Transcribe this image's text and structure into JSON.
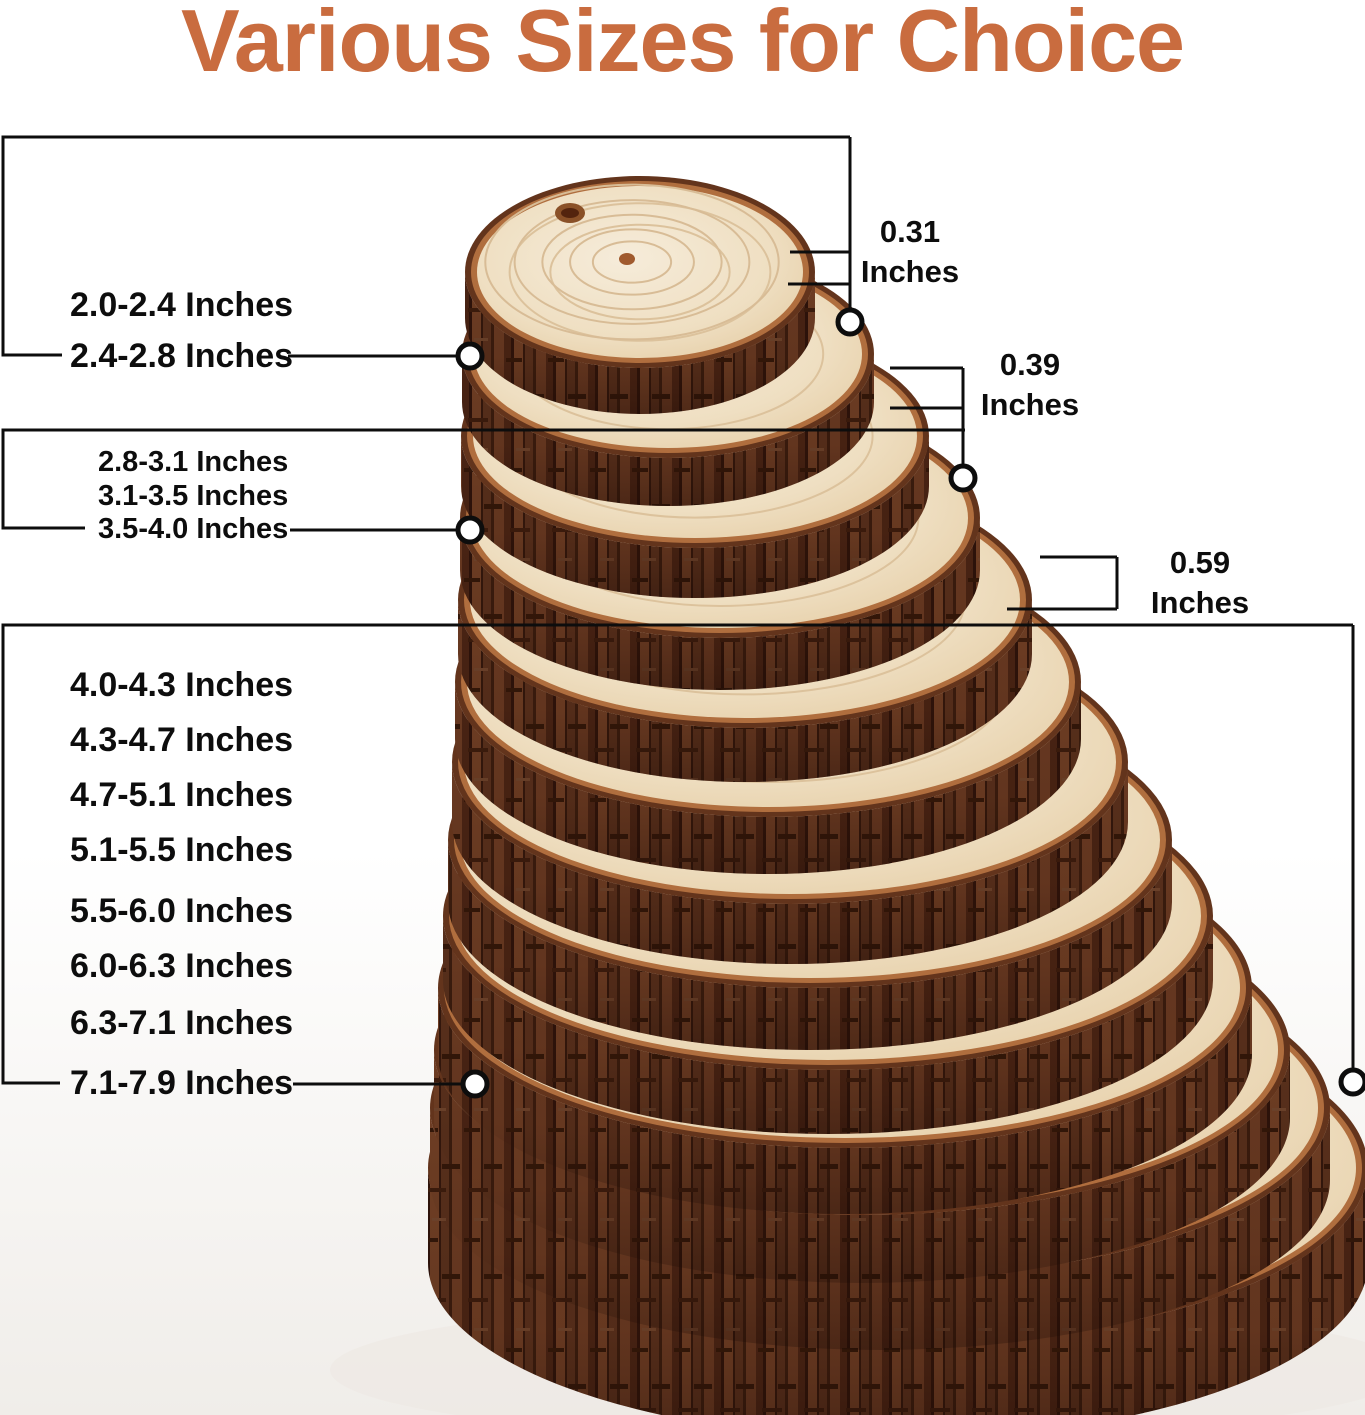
{
  "title": {
    "text": "Various Sizes for Choice"
  },
  "colors": {
    "title": "#C96C3F",
    "callout_line": "#0d0d0d",
    "bark_dark": "#5E3120",
    "bark_light": "#6F3E24",
    "copper_rim": "#B06E3E",
    "wood_face": "#EFDFC2"
  },
  "diameter_groups": [
    {
      "labels": [
        "2.0-2.4 Inches",
        "2.4-2.8 Inches"
      ]
    },
    {
      "labels": [
        "2.8-3.1 Inches",
        "3.1-3.5 Inches",
        "3.5-4.0 Inches"
      ]
    },
    {
      "labels": [
        "4.0-4.3 Inches",
        "4.3-4.7 Inches",
        "4.7-5.1 Inches",
        "5.1-5.5 Inches",
        "5.5-6.0 Inches",
        "6.0-6.3 Inches",
        "6.3-7.1 Inches",
        "7.1-7.9 Inches"
      ]
    }
  ],
  "thickness_labels": [
    {
      "value": "0.31",
      "unit": "Inches"
    },
    {
      "value": "0.39",
      "unit": "Inches"
    },
    {
      "value": "0.59",
      "unit": "Inches"
    }
  ],
  "photo": {
    "slice_count": 13
  }
}
